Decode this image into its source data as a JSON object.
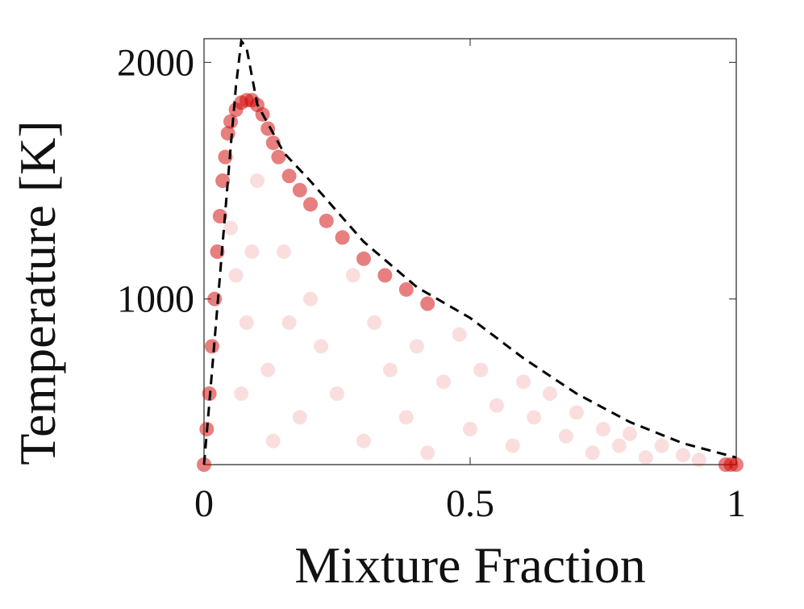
{
  "chart_data": {
    "type": "scatter",
    "xlabel": "Mixture Fraction",
    "ylabel": "Temperature [K]",
    "xlim": [
      0,
      1
    ],
    "ylim": [
      300,
      2100
    ],
    "xticks": [
      0,
      0.5,
      1
    ],
    "yticks": [
      1000,
      2000
    ],
    "series": [
      {
        "type": "scatter",
        "color": "#d00000",
        "opacity": 0.5,
        "x": [
          0,
          0.005,
          0.01,
          0.015,
          0.02,
          0.025,
          0.03,
          0.035,
          0.04,
          0.045,
          0.05,
          0.06,
          0.07,
          0.08,
          0.09,
          0.1,
          0.11,
          0.12,
          0.13,
          0.14,
          0.16,
          0.18,
          0.2,
          0.23,
          0.26,
          0.3,
          0.34,
          0.38,
          0.42,
          0.98,
          0.99,
          1
        ],
        "values": [
          300,
          450,
          600,
          800,
          1000,
          1200,
          1350,
          1500,
          1600,
          1700,
          1750,
          1800,
          1830,
          1840,
          1840,
          1820,
          1780,
          1720,
          1660,
          1600,
          1520,
          1460,
          1400,
          1330,
          1260,
          1170,
          1100,
          1040,
          980,
          300,
          300,
          300
        ]
      },
      {
        "type": "scatter",
        "color": "#e02020",
        "opacity": 0.15,
        "x": [
          0.05,
          0.06,
          0.08,
          0.1,
          0.12,
          0.15,
          0.18,
          0.2,
          0.22,
          0.25,
          0.28,
          0.3,
          0.32,
          0.35,
          0.38,
          0.4,
          0.42,
          0.45,
          0.48,
          0.5,
          0.52,
          0.55,
          0.58,
          0.6,
          0.62,
          0.65,
          0.68,
          0.7,
          0.73,
          0.75,
          0.78,
          0.8,
          0.83,
          0.86,
          0.9,
          0.93,
          0.07,
          0.09,
          0.13,
          0.16
        ],
        "values": [
          1300,
          1100,
          900,
          1500,
          700,
          1200,
          500,
          1000,
          800,
          600,
          1100,
          400,
          900,
          700,
          500,
          800,
          350,
          650,
          850,
          450,
          700,
          550,
          380,
          650,
          500,
          600,
          420,
          520,
          350,
          450,
          380,
          430,
          330,
          380,
          340,
          320,
          600,
          1200,
          400,
          900
        ]
      },
      {
        "type": "line",
        "color": "#000000",
        "dashed": true,
        "x": [
          0,
          0.01,
          0.02,
          0.03,
          0.04,
          0.05,
          0.06,
          0.07,
          0.08,
          0.1,
          0.15,
          0.2,
          0.3,
          0.4,
          0.5,
          0.6,
          0.7,
          0.8,
          0.9,
          1
        ],
        "values": [
          300,
          560,
          830,
          1100,
          1370,
          1640,
          1900,
          2090,
          2060,
          1823,
          1618,
          1498,
          1242,
          1050,
          920,
          750,
          600,
          480,
          390,
          330
        ]
      }
    ]
  }
}
